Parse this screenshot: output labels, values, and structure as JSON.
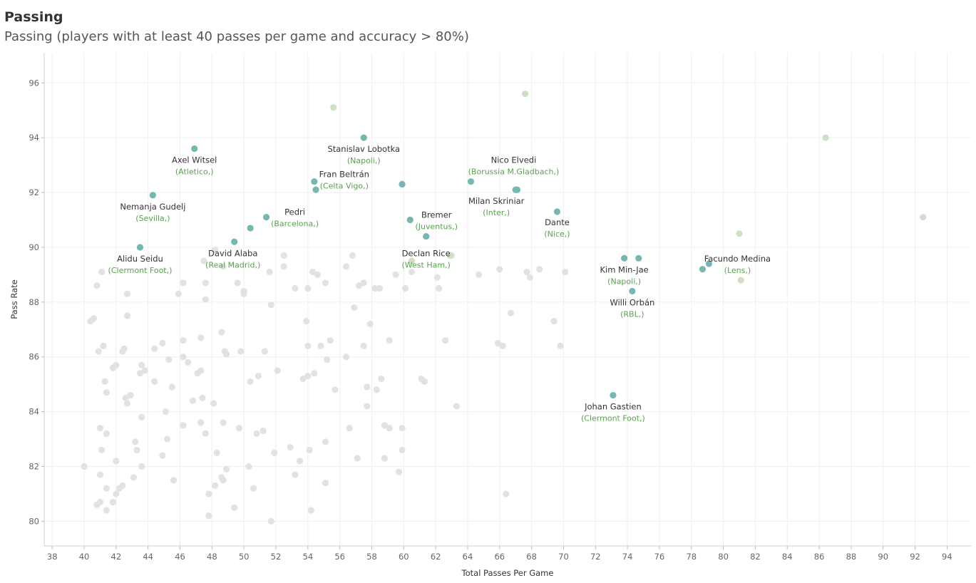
{
  "title": "Passing",
  "subtitle": "Passing (players with at least 40 passes per game and accuracy > 80%)",
  "colors": {
    "highlight": "#76b7b2",
    "light_green": "#cfe0c8",
    "other": "#e2e2e2",
    "team_label": "#59a14f"
  },
  "chart_data": {
    "type": "scatter",
    "xlabel": "Total Passes Per Game",
    "ylabel": "Pass Rate",
    "xlim": [
      37.5,
      95.5
    ],
    "ylim": [
      79.1,
      97.1
    ],
    "xticks": [
      "38",
      "40",
      "42",
      "44",
      "46",
      "48",
      "50",
      "52",
      "54",
      "56",
      "58",
      "60",
      "62",
      "64",
      "66",
      "68",
      "70",
      "72",
      "74",
      "76",
      "78",
      "80",
      "82",
      "84",
      "86",
      "88",
      "90",
      "92",
      "94"
    ],
    "yticks": [
      "80",
      "82",
      "84",
      "86",
      "88",
      "90",
      "92",
      "94",
      "96"
    ],
    "grid": true,
    "highlighted": [
      {
        "name": "Axel Witsel",
        "team": "(Atletico,)",
        "x": 46.9,
        "y": 93.6
      },
      {
        "name": "Nemanja Gudelj",
        "team": "(Sevilla,)",
        "x": 44.3,
        "y": 91.9
      },
      {
        "name": "Alidu Seidu",
        "team": "(Clermont Foot,)",
        "x": 43.5,
        "y": 90.0
      },
      {
        "name": "David Alaba",
        "team": "(Real Madrid,)",
        "x": 49.4,
        "y": 90.2
      },
      {
        "name": "Pedri",
        "team": "(Barcelona,)",
        "x": 51.4,
        "y": 91.1
      },
      {
        "name": "Fran Beltrán",
        "team": "(Celta Vigo,)",
        "x": 54.4,
        "y": 92.4
      },
      {
        "name": "Stanislav Lobotka",
        "team": "(Napoli,)",
        "x": 57.5,
        "y": 94.0
      },
      {
        "name": "Bremer",
        "team": "(Juventus,)",
        "x": 60.4,
        "y": 91.0
      },
      {
        "name": "Declan Rice",
        "team": "(West Ham,)",
        "x": 61.4,
        "y": 90.4
      },
      {
        "name": "Nico Elvedi",
        "team": "(Borussia M.Gladbach,)",
        "x": 64.2,
        "y": 92.4
      },
      {
        "name": "Milan Skriniar",
        "team": "(Inter,)",
        "x": 67.0,
        "y": 92.1
      },
      {
        "name": "Dante",
        "team": "(Nice,)",
        "x": 69.6,
        "y": 91.3
      },
      {
        "name": "Kim Min-Jae",
        "team": "(Napoli,)",
        "x": 73.8,
        "y": 89.6
      },
      {
        "name": "Willi Orbán",
        "team": "(RBL,)",
        "x": 74.3,
        "y": 88.4
      },
      {
        "name": "Facundo Medina",
        "team": "(Lens,)",
        "x": 79.1,
        "y": 89.4
      },
      {
        "name": "Johan Gastien",
        "team": "(Clermont Foot,)",
        "x": 73.1,
        "y": 84.6
      }
    ],
    "highlighted_unlabeled": [
      {
        "x": 54.5,
        "y": 92.1
      },
      {
        "x": 59.9,
        "y": 92.3
      },
      {
        "x": 50.4,
        "y": 90.7
      },
      {
        "x": 67.1,
        "y": 92.1
      },
      {
        "x": 74.7,
        "y": 89.6
      },
      {
        "x": 78.7,
        "y": 89.2
      }
    ],
    "light_green_points": [
      {
        "x": 55.6,
        "y": 95.1
      },
      {
        "x": 67.6,
        "y": 95.6
      },
      {
        "x": 86.4,
        "y": 94.0
      },
      {
        "x": 92.5,
        "y": 91.1
      },
      {
        "x": 81.0,
        "y": 90.5
      },
      {
        "x": 81.1,
        "y": 88.8
      },
      {
        "x": 62.9,
        "y": 89.7
      },
      {
        "x": 60.5,
        "y": 89.5
      }
    ],
    "other_points": [
      {
        "x": 40.4,
        "y": 87.3
      },
      {
        "x": 40.6,
        "y": 87.4
      },
      {
        "x": 40.8,
        "y": 88.6
      },
      {
        "x": 41.1,
        "y": 89.1
      },
      {
        "x": 40.9,
        "y": 86.2
      },
      {
        "x": 41.2,
        "y": 86.4
      },
      {
        "x": 41.3,
        "y": 85.1
      },
      {
        "x": 41.4,
        "y": 84.7
      },
      {
        "x": 41.0,
        "y": 83.4
      },
      {
        "x": 41.4,
        "y": 83.2
      },
      {
        "x": 41.1,
        "y": 82.6
      },
      {
        "x": 41.0,
        "y": 81.7
      },
      {
        "x": 41.4,
        "y": 81.2
      },
      {
        "x": 40.8,
        "y": 80.6
      },
      {
        "x": 41.0,
        "y": 80.7
      },
      {
        "x": 41.4,
        "y": 80.4
      },
      {
        "x": 41.8,
        "y": 80.7
      },
      {
        "x": 42.0,
        "y": 81.0
      },
      {
        "x": 42.2,
        "y": 81.2
      },
      {
        "x": 42.4,
        "y": 81.3
      },
      {
        "x": 42.0,
        "y": 82.2
      },
      {
        "x": 41.8,
        "y": 85.6
      },
      {
        "x": 42.0,
        "y": 85.7
      },
      {
        "x": 42.4,
        "y": 86.2
      },
      {
        "x": 42.5,
        "y": 86.3
      },
      {
        "x": 42.7,
        "y": 87.5
      },
      {
        "x": 42.7,
        "y": 88.3
      },
      {
        "x": 42.6,
        "y": 84.5
      },
      {
        "x": 42.7,
        "y": 84.3
      },
      {
        "x": 42.9,
        "y": 84.6
      },
      {
        "x": 43.2,
        "y": 82.9
      },
      {
        "x": 43.3,
        "y": 82.6
      },
      {
        "x": 43.1,
        "y": 81.6
      },
      {
        "x": 43.6,
        "y": 82.0
      },
      {
        "x": 43.6,
        "y": 83.8
      },
      {
        "x": 43.5,
        "y": 85.4
      },
      {
        "x": 43.6,
        "y": 85.7
      },
      {
        "x": 43.8,
        "y": 85.5
      },
      {
        "x": 44.4,
        "y": 86.3
      },
      {
        "x": 44.4,
        "y": 85.1
      },
      {
        "x": 44.9,
        "y": 86.5
      },
      {
        "x": 45.1,
        "y": 84.0
      },
      {
        "x": 45.2,
        "y": 83.0
      },
      {
        "x": 44.9,
        "y": 82.4
      },
      {
        "x": 45.3,
        "y": 85.9
      },
      {
        "x": 45.5,
        "y": 84.9
      },
      {
        "x": 45.6,
        "y": 81.5
      },
      {
        "x": 45.9,
        "y": 88.3
      },
      {
        "x": 46.2,
        "y": 88.7
      },
      {
        "x": 46.2,
        "y": 86.6
      },
      {
        "x": 46.2,
        "y": 86.0
      },
      {
        "x": 46.5,
        "y": 85.8
      },
      {
        "x": 46.8,
        "y": 84.4
      },
      {
        "x": 46.2,
        "y": 83.5
      },
      {
        "x": 47.1,
        "y": 85.4
      },
      {
        "x": 47.3,
        "y": 85.5
      },
      {
        "x": 47.3,
        "y": 86.7
      },
      {
        "x": 47.3,
        "y": 83.6
      },
      {
        "x": 47.4,
        "y": 84.5
      },
      {
        "x": 47.6,
        "y": 83.2
      },
      {
        "x": 47.6,
        "y": 88.1
      },
      {
        "x": 47.6,
        "y": 88.7
      },
      {
        "x": 47.5,
        "y": 89.5
      },
      {
        "x": 47.8,
        "y": 81.0
      },
      {
        "x": 47.8,
        "y": 80.2
      },
      {
        "x": 48.1,
        "y": 84.3
      },
      {
        "x": 48.2,
        "y": 81.3
      },
      {
        "x": 48.3,
        "y": 82.5
      },
      {
        "x": 48.6,
        "y": 81.6
      },
      {
        "x": 48.7,
        "y": 81.5
      },
      {
        "x": 48.9,
        "y": 81.9
      },
      {
        "x": 48.7,
        "y": 83.6
      },
      {
        "x": 48.6,
        "y": 86.9
      },
      {
        "x": 48.8,
        "y": 86.2
      },
      {
        "x": 48.9,
        "y": 86.1
      },
      {
        "x": 48.7,
        "y": 89.3
      },
      {
        "x": 48.2,
        "y": 89.9
      },
      {
        "x": 49.4,
        "y": 80.5
      },
      {
        "x": 49.6,
        "y": 88.7
      },
      {
        "x": 49.8,
        "y": 86.2
      },
      {
        "x": 49.7,
        "y": 83.4
      },
      {
        "x": 50.0,
        "y": 88.4
      },
      {
        "x": 50.0,
        "y": 88.3
      },
      {
        "x": 50.3,
        "y": 82.0
      },
      {
        "x": 50.4,
        "y": 85.1
      },
      {
        "x": 50.6,
        "y": 81.2
      },
      {
        "x": 50.8,
        "y": 83.2
      },
      {
        "x": 50.9,
        "y": 85.3
      },
      {
        "x": 51.2,
        "y": 83.3
      },
      {
        "x": 51.3,
        "y": 86.2
      },
      {
        "x": 51.6,
        "y": 89.1
      },
      {
        "x": 51.7,
        "y": 87.9
      },
      {
        "x": 51.7,
        "y": 80.0
      },
      {
        "x": 51.9,
        "y": 82.5
      },
      {
        "x": 52.1,
        "y": 85.5
      },
      {
        "x": 52.5,
        "y": 89.7
      },
      {
        "x": 52.5,
        "y": 89.3
      },
      {
        "x": 52.9,
        "y": 82.7
      },
      {
        "x": 53.2,
        "y": 81.7
      },
      {
        "x": 53.2,
        "y": 88.5
      },
      {
        "x": 53.5,
        "y": 82.2
      },
      {
        "x": 53.7,
        "y": 85.2
      },
      {
        "x": 53.9,
        "y": 87.3
      },
      {
        "x": 54.0,
        "y": 86.4
      },
      {
        "x": 54.0,
        "y": 85.3
      },
      {
        "x": 54.0,
        "y": 88.5
      },
      {
        "x": 54.1,
        "y": 82.6
      },
      {
        "x": 54.2,
        "y": 80.4
      },
      {
        "x": 54.3,
        "y": 89.1
      },
      {
        "x": 54.4,
        "y": 85.4
      },
      {
        "x": 54.6,
        "y": 89.0
      },
      {
        "x": 54.8,
        "y": 86.4
      },
      {
        "x": 55.1,
        "y": 88.7
      },
      {
        "x": 55.1,
        "y": 82.9
      },
      {
        "x": 55.1,
        "y": 81.4
      },
      {
        "x": 55.2,
        "y": 85.9
      },
      {
        "x": 55.4,
        "y": 86.6
      },
      {
        "x": 55.7,
        "y": 84.8
      },
      {
        "x": 56.4,
        "y": 89.3
      },
      {
        "x": 56.4,
        "y": 86.0
      },
      {
        "x": 56.6,
        "y": 83.4
      },
      {
        "x": 56.8,
        "y": 89.7
      },
      {
        "x": 56.9,
        "y": 87.8
      },
      {
        "x": 57.1,
        "y": 82.3
      },
      {
        "x": 57.2,
        "y": 88.6
      },
      {
        "x": 57.5,
        "y": 88.7
      },
      {
        "x": 57.5,
        "y": 86.4
      },
      {
        "x": 57.7,
        "y": 84.9
      },
      {
        "x": 57.7,
        "y": 84.2
      },
      {
        "x": 57.9,
        "y": 87.2
      },
      {
        "x": 58.2,
        "y": 88.5
      },
      {
        "x": 58.3,
        "y": 84.8
      },
      {
        "x": 58.5,
        "y": 88.5
      },
      {
        "x": 58.6,
        "y": 85.2
      },
      {
        "x": 58.8,
        "y": 83.5
      },
      {
        "x": 58.8,
        "y": 82.3
      },
      {
        "x": 59.1,
        "y": 86.6
      },
      {
        "x": 59.1,
        "y": 83.4
      },
      {
        "x": 59.5,
        "y": 89.0
      },
      {
        "x": 59.7,
        "y": 81.8
      },
      {
        "x": 59.9,
        "y": 83.4
      },
      {
        "x": 59.9,
        "y": 82.6
      },
      {
        "x": 60.1,
        "y": 88.5
      },
      {
        "x": 60.5,
        "y": 89.1
      },
      {
        "x": 61.1,
        "y": 85.2
      },
      {
        "x": 61.3,
        "y": 85.1
      },
      {
        "x": 62.1,
        "y": 88.9
      },
      {
        "x": 62.2,
        "y": 88.5
      },
      {
        "x": 62.6,
        "y": 86.6
      },
      {
        "x": 63.0,
        "y": 89.7
      },
      {
        "x": 63.3,
        "y": 84.2
      },
      {
        "x": 64.7,
        "y": 89.0
      },
      {
        "x": 65.9,
        "y": 86.5
      },
      {
        "x": 66.0,
        "y": 89.2
      },
      {
        "x": 66.2,
        "y": 86.4
      },
      {
        "x": 66.4,
        "y": 81.0
      },
      {
        "x": 66.7,
        "y": 87.6
      },
      {
        "x": 67.7,
        "y": 89.1
      },
      {
        "x": 67.9,
        "y": 88.9
      },
      {
        "x": 68.5,
        "y": 89.2
      },
      {
        "x": 69.4,
        "y": 87.3
      },
      {
        "x": 69.8,
        "y": 86.4
      },
      {
        "x": 70.1,
        "y": 89.1
      },
      {
        "x": 40.0,
        "y": 82.0
      }
    ]
  }
}
